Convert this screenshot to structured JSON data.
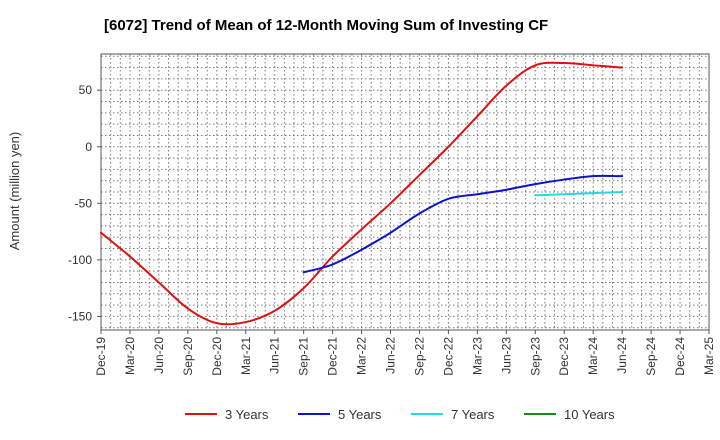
{
  "chart_data": {
    "type": "line",
    "title": "[6072]  Trend of Mean of 12-Month Moving Sum of Investing CF",
    "xlabel": "",
    "ylabel": "Amount (million yen)",
    "ylim": [
      -162,
      82
    ],
    "yticks": [
      50,
      0,
      -50,
      -100,
      -150
    ],
    "categories": [
      "Dec-19",
      "Mar-20",
      "Jun-20",
      "Sep-20",
      "Dec-20",
      "Mar-21",
      "Jun-21",
      "Sep-21",
      "Dec-21",
      "Mar-22",
      "Jun-22",
      "Sep-22",
      "Dec-22",
      "Mar-23",
      "Jun-23",
      "Sep-23",
      "Dec-23",
      "Mar-24",
      "Jun-24",
      "Sep-24",
      "Dec-24",
      "Mar-25"
    ],
    "series": [
      {
        "name": "3 Years",
        "color": "#dd1111",
        "values": [
          -76,
          -97,
          -120,
          -143,
          -156,
          -155,
          -145,
          -125,
          -97,
          -73,
          -50,
          -25,
          0,
          27,
          54,
          72,
          74,
          72,
          70,
          null,
          null,
          null
        ]
      },
      {
        "name": "5 Years",
        "color": "#0b14c8",
        "values": [
          null,
          null,
          null,
          null,
          null,
          null,
          null,
          -111,
          -104,
          -91,
          -76,
          -59,
          -46,
          -42,
          -38,
          -33,
          -29,
          -26,
          -26,
          null,
          null,
          null
        ]
      },
      {
        "name": "7 Years",
        "color": "#22dddd",
        "values": [
          null,
          null,
          null,
          null,
          null,
          null,
          null,
          null,
          null,
          null,
          null,
          null,
          null,
          null,
          null,
          -43,
          -42,
          -41,
          -40,
          null,
          null,
          null
        ]
      },
      {
        "name": "10 Years",
        "color": "#1a8a1a",
        "values": [
          null,
          null,
          null,
          null,
          null,
          null,
          null,
          null,
          null,
          null,
          null,
          null,
          null,
          null,
          null,
          null,
          null,
          null,
          null,
          null,
          null,
          null
        ]
      }
    ],
    "grid": true,
    "legend_position": "bottom"
  }
}
